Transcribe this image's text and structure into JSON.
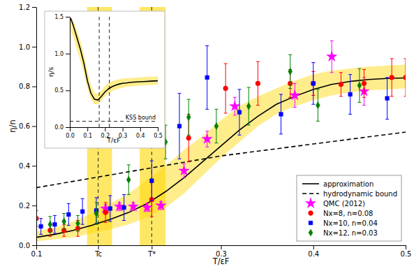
{
  "chart_data": [
    {
      "type": "line",
      "xlabel": "T/εF",
      "ylabel": "η/n",
      "xlim": [
        0.1,
        0.5
      ],
      "ylim": [
        0.0,
        1.2
      ],
      "xticks": [
        0.1,
        {
          "value": 0.167,
          "label": "Tc"
        },
        {
          "value": 0.225,
          "label": "T*"
        },
        0.3,
        0.4,
        0.5
      ],
      "yticks": [
        {
          "value": 0,
          "label": "0.0"
        },
        0.2,
        0.4,
        0.6,
        0.8,
        {
          "value": 1,
          "label": "1.0"
        },
        1.2
      ],
      "legend": "lower right",
      "bands": [
        {
          "color": "#FFD700",
          "x": [
            0.1,
            0.12,
            0.14,
            0.16,
            0.18,
            0.2,
            0.22,
            0.24,
            0.26,
            0.28,
            0.3,
            0.32,
            0.34,
            0.36,
            0.38,
            0.4,
            0.42,
            0.44,
            0.46,
            0.48,
            0.5
          ],
          "low": [
            0.02,
            0.03,
            0.04,
            0.06,
            0.08,
            0.105,
            0.14,
            0.19,
            0.26,
            0.35,
            0.44,
            0.52,
            0.6,
            0.66,
            0.7,
            0.73,
            0.755,
            0.77,
            0.78,
            0.785,
            0.79
          ],
          "high": [
            0.07,
            0.09,
            0.12,
            0.16,
            0.21,
            0.26,
            0.33,
            0.4,
            0.48,
            0.55,
            0.63,
            0.7,
            0.75,
            0.79,
            0.83,
            0.86,
            0.88,
            0.89,
            0.9,
            0.905,
            0.91
          ]
        }
      ],
      "spans": [
        {
          "from": 0.155,
          "to": 0.182,
          "color": "#FFD700"
        },
        {
          "from": 0.212,
          "to": 0.24,
          "color": "#FFD700"
        }
      ],
      "vlines": [
        0.167,
        0.225
      ],
      "series": [
        {
          "name": "approximation",
          "type": "line",
          "color": "black",
          "line_style": "solid",
          "x": [
            0.1,
            0.12,
            0.14,
            0.16,
            0.18,
            0.2,
            0.22,
            0.24,
            0.26,
            0.28,
            0.3,
            0.32,
            0.34,
            0.36,
            0.38,
            0.4,
            0.42,
            0.44,
            0.46,
            0.48,
            0.5
          ],
          "values": [
            0.04,
            0.055,
            0.075,
            0.1,
            0.13,
            0.165,
            0.21,
            0.27,
            0.34,
            0.42,
            0.5,
            0.58,
            0.65,
            0.71,
            0.75,
            0.785,
            0.81,
            0.825,
            0.835,
            0.84,
            0.843
          ]
        },
        {
          "name": "hydrodynamic bound",
          "type": "line",
          "color": "black",
          "line_style": "dashed",
          "x": [
            0.1,
            0.15,
            0.2,
            0.25,
            0.3,
            0.35,
            0.4,
            0.45,
            0.5
          ],
          "values": [
            0.29,
            0.33,
            0.37,
            0.41,
            0.45,
            0.48,
            0.51,
            0.54,
            0.57
          ]
        },
        {
          "name": "QMC (2012)",
          "type": "scatter",
          "color": "magenta",
          "marker": "star",
          "x": [
            0.175,
            0.19,
            0.205,
            0.22,
            0.235,
            0.26,
            0.285,
            0.315,
            0.38,
            0.42,
            0.455
          ],
          "values": [
            0.185,
            0.195,
            0.195,
            0.19,
            0.2,
            0.375,
            0.535,
            0.7,
            0.755,
            0.95,
            0.775
          ],
          "errors": [
            0.02,
            0.02,
            0.02,
            0.02,
            0.02,
            0.035,
            0.04,
            0.045,
            0.06,
            0.08,
            0.07
          ]
        },
        {
          "name": "Nx=8, n=0.08",
          "type": "scatter",
          "color": "red",
          "marker": "circle",
          "x": [
            0.1,
            0.115,
            0.13,
            0.145,
            0.175,
            0.225,
            0.265,
            0.305,
            0.34,
            0.375,
            0.4,
            0.43,
            0.455,
            0.485,
            0.5
          ],
          "values": [
            0.135,
            0.075,
            0.075,
            0.085,
            0.165,
            0.23,
            0.54,
            0.79,
            0.815,
            0.815,
            0.815,
            0.81,
            0.815,
            0.845,
            0.845
          ],
          "errors": [
            0.04,
            0.03,
            0.03,
            0.04,
            0.05,
            0.085,
            0.12,
            0.125,
            0.11,
            0.07,
            0.06,
            0.06,
            0.07,
            0.095,
            0.095
          ]
        },
        {
          "name": "Nx=10, n=0.04",
          "type": "scatter",
          "color": "blue",
          "marker": "square",
          "x": [
            0.105,
            0.12,
            0.135,
            0.15,
            0.165,
            0.18,
            0.195,
            0.225,
            0.255,
            0.285,
            0.32,
            0.365,
            0.4,
            0.44,
            0.48
          ],
          "values": [
            0.095,
            0.105,
            0.155,
            0.17,
            0.175,
            0.185,
            0.19,
            0.325,
            0.6,
            0.845,
            0.67,
            0.66,
            0.815,
            0.76,
            0.74
          ],
          "errors": [
            0.04,
            0.045,
            0.055,
            0.065,
            0.065,
            0.065,
            0.065,
            0.1,
            0.165,
            0.16,
            0.115,
            0.1,
            0.105,
            0.1,
            0.105
          ]
        },
        {
          "name": "Nx=12, n=0.03",
          "type": "scatter",
          "color": "green",
          "marker": "diamond",
          "x": [
            0.115,
            0.13,
            0.145,
            0.165,
            0.2,
            0.24,
            0.265,
            0.295,
            0.33,
            0.375,
            0.405,
            0.45
          ],
          "values": [
            0.105,
            0.12,
            0.11,
            0.16,
            0.33,
            0.52,
            0.645,
            0.6,
            0.7,
            0.875,
            0.705,
            0.805
          ],
          "errors": [
            0.04,
            0.04,
            0.04,
            0.055,
            0.075,
            0.085,
            0.09,
            0.085,
            0.095,
            0.085,
            0.08,
            0.085
          ]
        }
      ]
    },
    {
      "type": "line",
      "xlabel": "T/εF",
      "ylabel": "η/s",
      "xlim": [
        0.0,
        0.5
      ],
      "ylim": [
        0.0,
        1.5
      ],
      "xticks": [
        {
          "value": 0,
          "label": "0.0"
        },
        0.1,
        0.2,
        0.3,
        0.4,
        0.5
      ],
      "yticks": [
        {
          "value": 0,
          "label": "0.0"
        },
        0.5,
        {
          "value": 1,
          "label": "1.0"
        },
        1.5
      ],
      "bands": [
        {
          "color": "#FFD700",
          "x": [
            0.005,
            0.02,
            0.04,
            0.06,
            0.08,
            0.1,
            0.12,
            0.14,
            0.16,
            0.18,
            0.2,
            0.22,
            0.24,
            0.26,
            0.28,
            0.3,
            0.32,
            0.35,
            0.38,
            0.42,
            0.46,
            0.5
          ],
          "low": [
            1.32,
            1.22,
            1.06,
            0.91,
            0.73,
            0.53,
            0.38,
            0.31,
            0.31,
            0.36,
            0.42,
            0.46,
            0.49,
            0.51,
            0.525,
            0.535,
            0.545,
            0.555,
            0.56,
            0.57,
            0.575,
            0.58
          ],
          "high": [
            1.49,
            1.44,
            1.32,
            1.18,
            0.99,
            0.76,
            0.57,
            0.47,
            0.45,
            0.5,
            0.56,
            0.6,
            0.62,
            0.64,
            0.65,
            0.66,
            0.665,
            0.67,
            0.675,
            0.68,
            0.685,
            0.69
          ]
        }
      ],
      "vlines": [
        0.167,
        0.225
      ],
      "hlines": [
        {
          "value": 0.08,
          "label": "KSS bound"
        }
      ],
      "series": [
        {
          "type": "line",
          "color": "black",
          "line_style": "solid",
          "x": [
            0.005,
            0.02,
            0.04,
            0.06,
            0.08,
            0.1,
            0.12,
            0.14,
            0.16,
            0.18,
            0.2,
            0.22,
            0.24,
            0.26,
            0.28,
            0.3,
            0.32,
            0.35,
            0.38,
            0.42,
            0.46,
            0.5
          ],
          "values": [
            1.48,
            1.38,
            1.22,
            1.06,
            0.87,
            0.63,
            0.46,
            0.38,
            0.37,
            0.42,
            0.48,
            0.52,
            0.55,
            0.57,
            0.585,
            0.595,
            0.6,
            0.61,
            0.615,
            0.62,
            0.625,
            0.63
          ]
        }
      ]
    }
  ]
}
